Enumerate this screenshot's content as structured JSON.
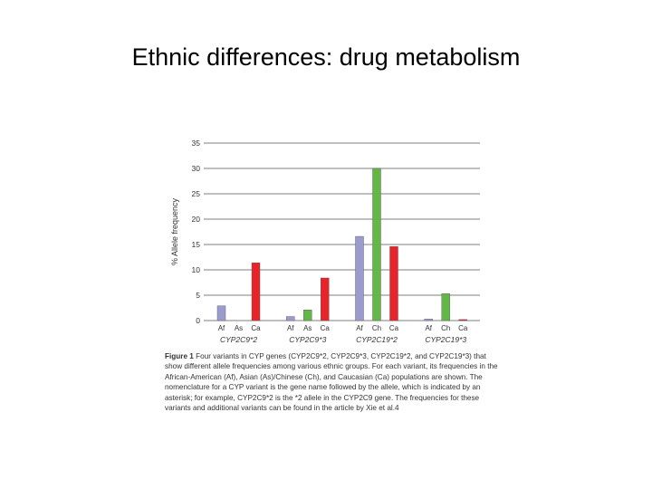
{
  "slide": {
    "title": "Ethnic differences: drug metabolism"
  },
  "chart_data": {
    "type": "bar",
    "ylabel": "% Allele frequency",
    "ylim": [
      0,
      35
    ],
    "yticks": [
      0,
      5,
      10,
      15,
      20,
      25,
      30,
      35
    ],
    "grid": true,
    "groups": [
      {
        "name": "CYP2C9*2",
        "bars": [
          {
            "label": "Af",
            "value": 2.9,
            "color": "#9b9bd0"
          },
          {
            "label": "As",
            "value": 0,
            "color": "#63b747"
          },
          {
            "label": "Ca",
            "value": 11.4,
            "color": "#e8232a"
          }
        ]
      },
      {
        "name": "CYP2C9*3",
        "bars": [
          {
            "label": "Af",
            "value": 0.8,
            "color": "#9b9bd0"
          },
          {
            "label": "As",
            "value": 2.1,
            "color": "#63b747"
          },
          {
            "label": "Ca",
            "value": 8.4,
            "color": "#e8232a"
          }
        ]
      },
      {
        "name": "CYP2C19*2",
        "bars": [
          {
            "label": "Af",
            "value": 16.6,
            "color": "#9b9bd0"
          },
          {
            "label": "Ch",
            "value": 30.0,
            "color": "#63b747"
          },
          {
            "label": "Ca",
            "value": 14.6,
            "color": "#e8232a"
          }
        ]
      },
      {
        "name": "CYP2C19*3",
        "bars": [
          {
            "label": "Af",
            "value": 0.3,
            "color": "#9b9bd0"
          },
          {
            "label": "Ch",
            "value": 5.3,
            "color": "#63b747"
          },
          {
            "label": "Ca",
            "value": 0.2,
            "color": "#e8232a"
          }
        ]
      }
    ]
  },
  "caption": {
    "figure_label": "Figure 1",
    "text": "Four variants in CYP genes (CYP2C9*2, CYP2C9*3, CYP2C19*2, and CYP2C19*3) that show different allele frequencies among various ethnic groups. For each variant, its frequencies in the African-American (Af), Asian (As)/Chinese (Ch), and Caucasian (Ca) populations are shown. The nomenclature for a CYP variant is the gene name followed by the allele, which is indicated by an asterisk; for example, CYP2C9*2 is the *2 allele in the CYP2C9 gene. The frequencies for these variants and additional variants can be found in the article by Xie et al.4"
  }
}
